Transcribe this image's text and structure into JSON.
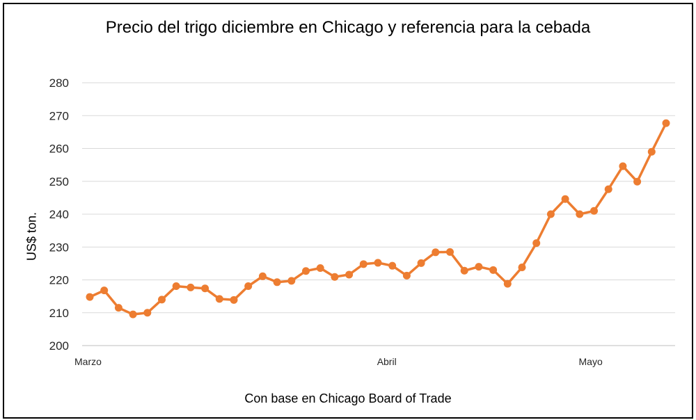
{
  "chart_data": {
    "type": "line",
    "title": "Precio del trigo diciembre en Chicago y referencia para la cebada",
    "ylabel": "US$ ton.",
    "xlabel": "",
    "source_note": "Con base en Chicago Board of Trade",
    "ylim": [
      200,
      280
    ],
    "yticks": [
      "200",
      "210",
      "220",
      "230",
      "240",
      "250",
      "260",
      "270",
      "280"
    ],
    "x_tick_labels": [
      {
        "label": "Marzo",
        "index": 0
      },
      {
        "label": "Abril",
        "index": 21
      },
      {
        "label": "Mayo",
        "index": 35
      }
    ],
    "grid": true,
    "legend": "none",
    "series": [
      {
        "color": "#ED7D31",
        "values": [
          214.8,
          216.8,
          211.5,
          209.5,
          210.0,
          214.0,
          218.1,
          217.7,
          217.4,
          214.2,
          213.9,
          218.1,
          221.1,
          219.3,
          219.7,
          222.7,
          223.6,
          220.9,
          221.6,
          224.8,
          225.2,
          224.3,
          221.3,
          225.1,
          228.4,
          228.5,
          222.8,
          224.0,
          223.0,
          218.8,
          223.8,
          231.2,
          240.0,
          244.6,
          240.0,
          241.0,
          247.6,
          254.6,
          249.9,
          259.0,
          267.7
        ]
      }
    ]
  }
}
